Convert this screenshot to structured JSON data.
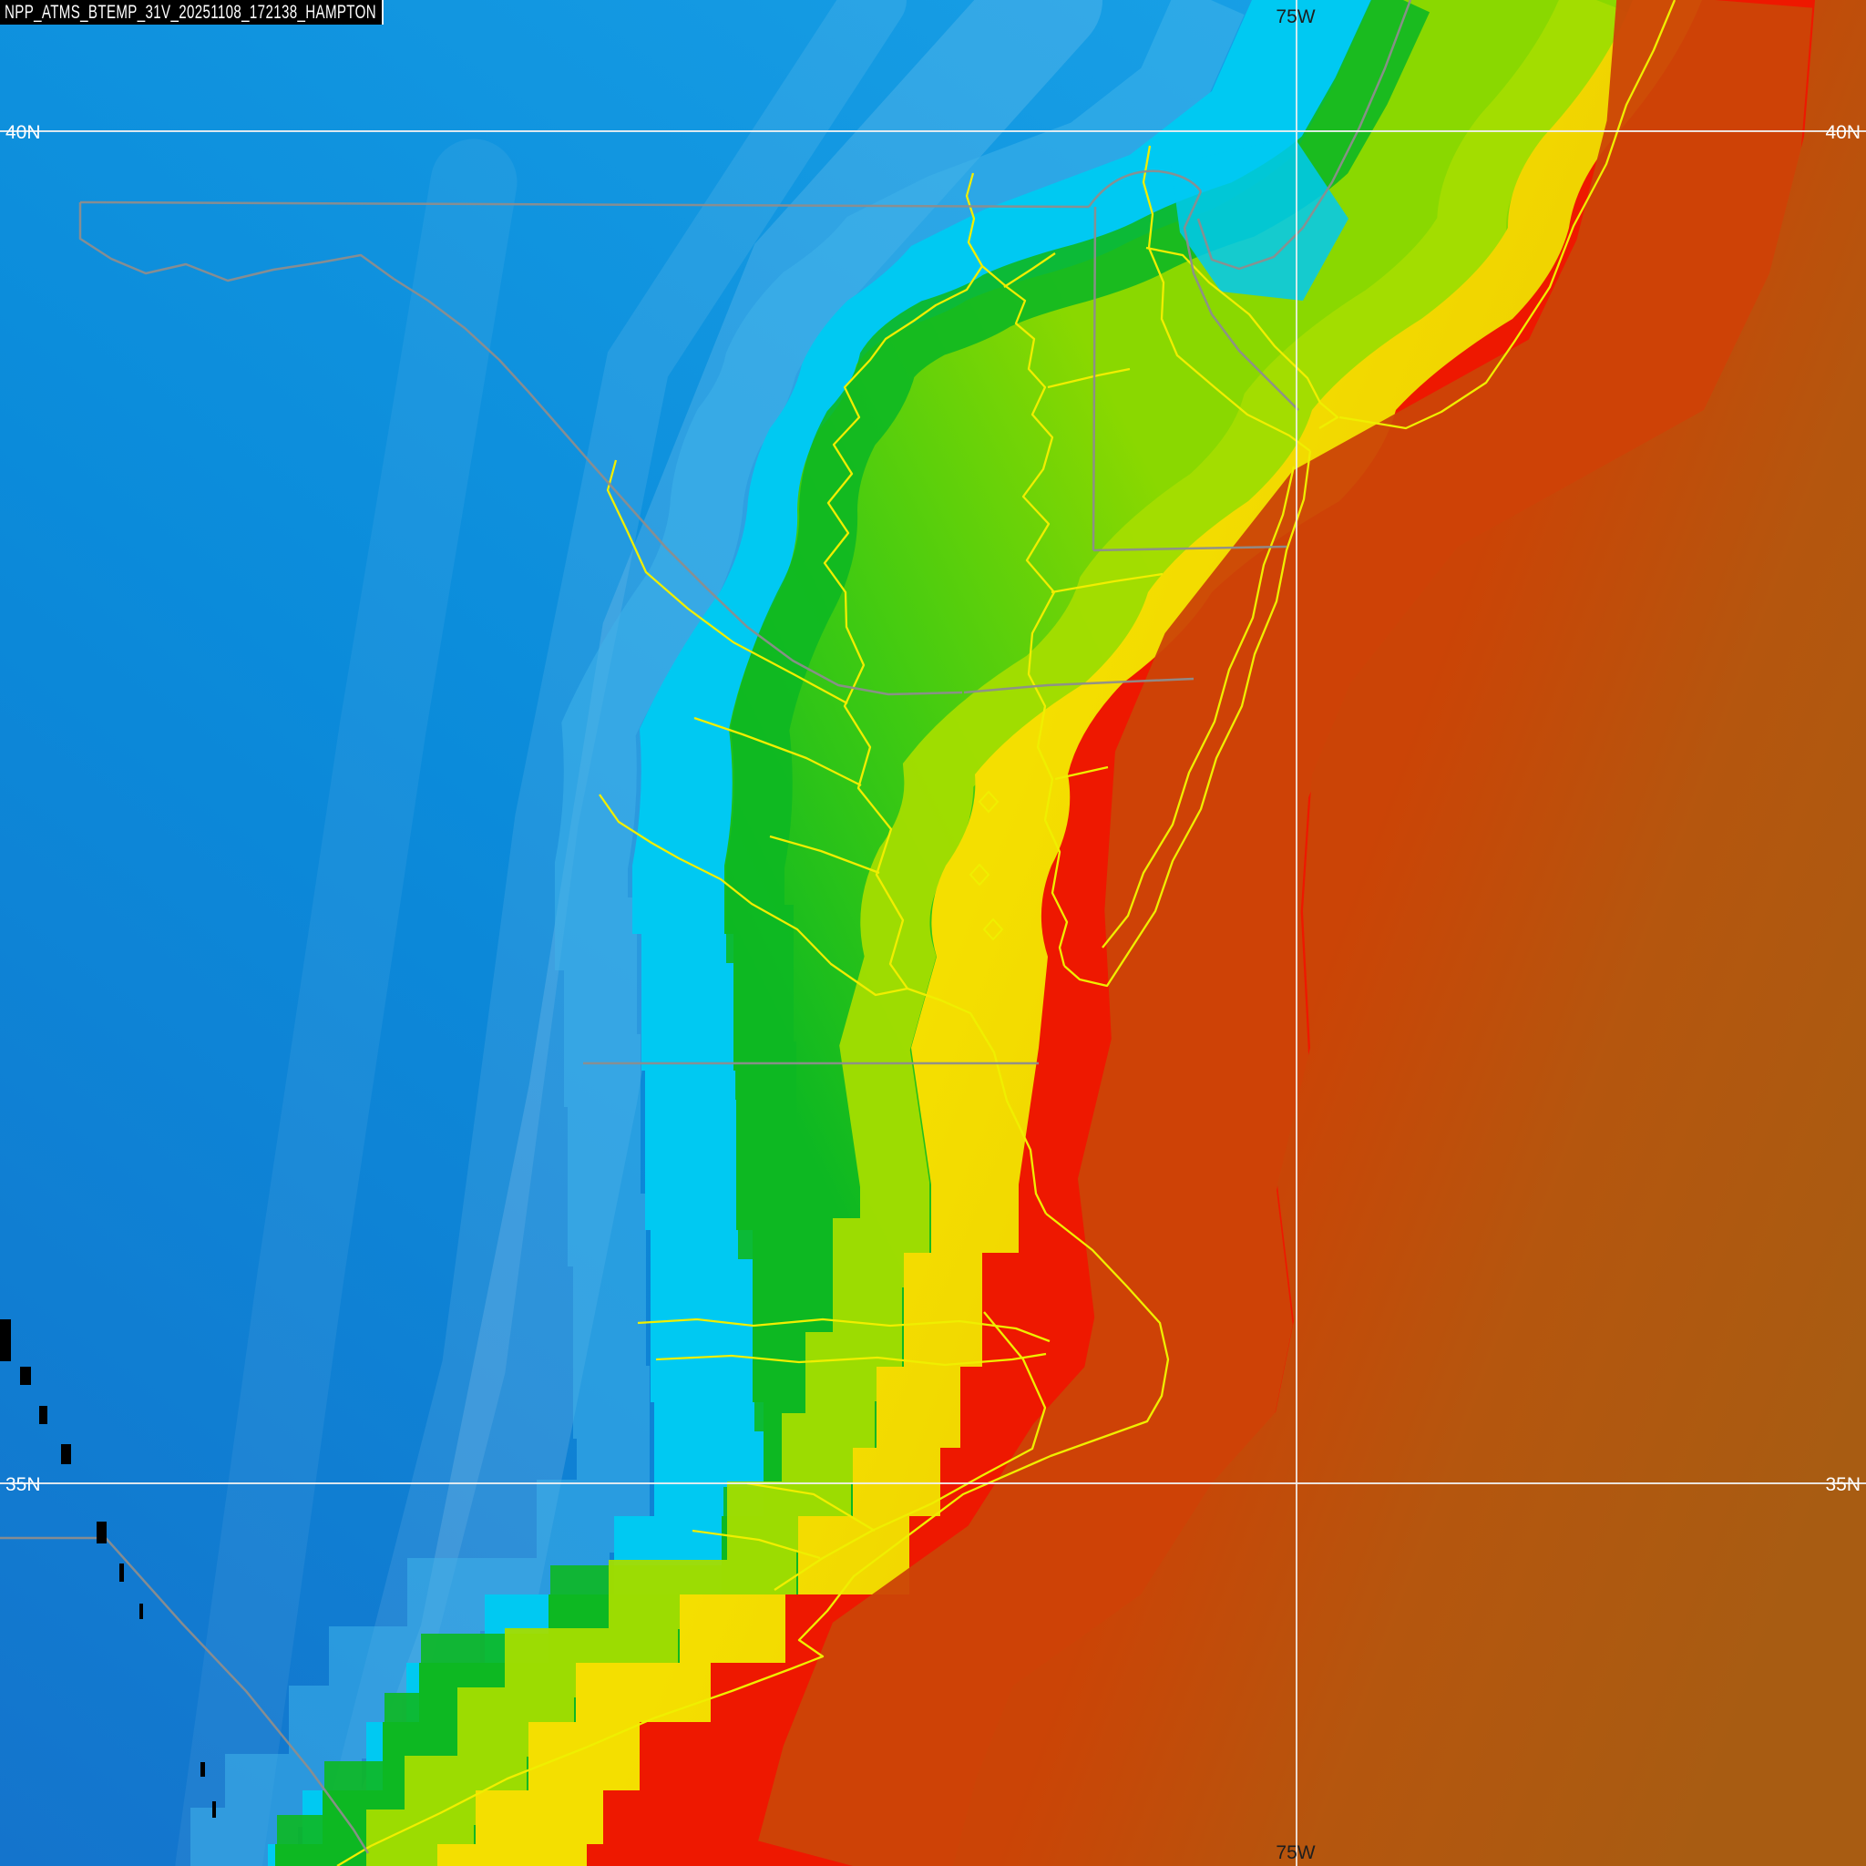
{
  "title": "NPP_ATMS_BTEMP_31V_20251108_172138_HAMPTON",
  "title_parts": {
    "satellite": "NPP",
    "instrument": "ATMS",
    "product": "BTEMP",
    "channel": "31V",
    "date": "20251108",
    "time": "172138",
    "site": "HAMPTON"
  },
  "graticule": {
    "lat_40": "40N",
    "lat_35": "35N",
    "lon_75": "75W"
  },
  "colors": {
    "blue_light": "#18a0e6",
    "ocean_blue": "#0b8bda",
    "deep_blue": "#1474cc",
    "pale_blue": "#3fb2ea",
    "cold_cyan": "#00c9f2",
    "green_deep": "#0db822",
    "green_mid": "#3eca12",
    "green_light": "#8ad800",
    "green_yellow": "#a4dd00",
    "yellow_band": "#f4df00",
    "yellow_deep": "#eecd00",
    "red_band": "#ee1800",
    "warm_red": "#cb4406",
    "brown_mid": "#b5560e",
    "hot_brown": "#a85c12",
    "coastline_yellow": "#f0ee00",
    "border_gray": "#8d8d8d",
    "gridline_white": "#f2f2f2",
    "label_white": "#ffffff",
    "label_dark": "#1e1e1e",
    "titlebar_bg": "#000000",
    "titlebar_text": "#ffffff",
    "gap_black": "#000000"
  },
  "map_content": {
    "type": "heatmap",
    "quantity": "brightness temperature",
    "temperature_bands_cold_to_warm": [
      "deep blue (coldest)",
      "blue",
      "pale blue",
      "cyan",
      "green",
      "yellow-green",
      "yellow",
      "red",
      "dark red-brown (warmest)"
    ],
    "overlays": {
      "coastlines": "yellow traced shorelines of Chesapeake Bay, Delmarva, Delaware Bay, New Jersey coast and North Carolina Outer Banks",
      "state_borders": "gray boundary lines",
      "graticule": "white latitude/longitude lines",
      "data_gaps": "small black tick marks along lower-left swath edge"
    }
  }
}
